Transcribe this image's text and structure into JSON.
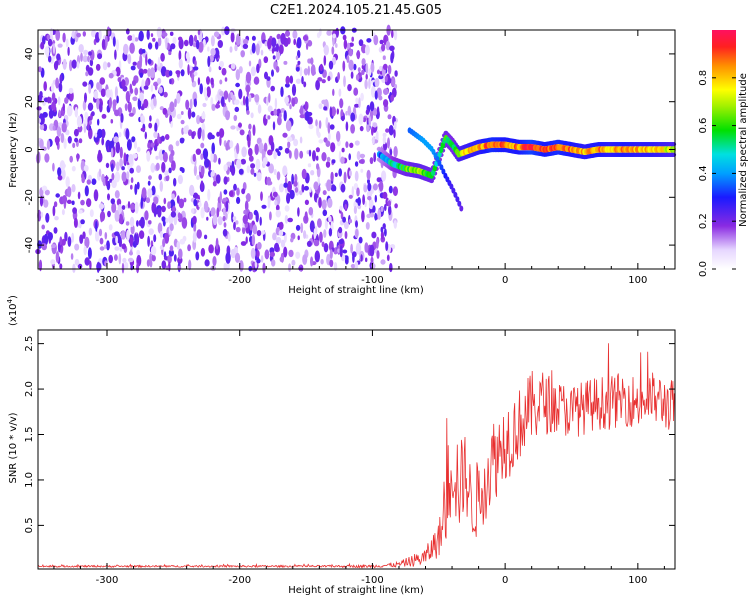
{
  "figure_title": "C2E1.2024.105.21.45.G05",
  "chart_data": [
    {
      "type": "heatmap",
      "title": "C2E1.2024.105.21.45.G05",
      "xlabel": "Height of straight line (km)",
      "ylabel": "Frequency (Hz)",
      "xlim": [
        -352,
        128
      ],
      "ylim": [
        -50,
        50
      ],
      "xticks": [
        -300,
        -200,
        -100,
        0,
        100
      ],
      "yticks": [
        -40,
        -20,
        0,
        20,
        40
      ],
      "grid": false,
      "colorbar": {
        "label": "Normalized spectral amplitude",
        "range": [
          0.0,
          1.0
        ],
        "ticks": [
          0.0,
          0.2,
          0.4,
          0.6,
          0.8
        ],
        "tick_labels": [
          "0.0",
          "0.2",
          "0.4",
          "0.6",
          "0.8"
        ]
      },
      "noise_region": {
        "x": [
          -352,
          -82
        ],
        "y": [
          -50,
          50
        ],
        "amplitude": [
          0.05,
          0.25
        ]
      },
      "signal_track": {
        "x": [
          -95,
          -85,
          -75,
          -65,
          -55,
          -50,
          -45,
          -40,
          -35,
          -30,
          -20,
          -10,
          0,
          10,
          20,
          30,
          40,
          50,
          60,
          70,
          80,
          90,
          100,
          110,
          120,
          128
        ],
        "freq": [
          -2,
          -6,
          -8,
          -9,
          -11,
          -3,
          5,
          2,
          -2,
          -1,
          1,
          2,
          2,
          1,
          1,
          0,
          1,
          0,
          -1,
          0,
          0,
          0,
          0,
          0,
          0,
          0
        ],
        "amplitude": [
          0.35,
          0.5,
          0.6,
          0.65,
          0.6,
          0.5,
          0.6,
          0.55,
          0.7,
          0.75,
          0.8,
          0.9,
          0.85,
          0.85,
          0.95,
          0.85,
          0.9,
          0.85,
          0.8,
          0.85,
          0.8,
          0.85,
          0.8,
          0.8,
          0.75,
          0.7
        ]
      },
      "secondary_track": {
        "x": [
          -72,
          -62,
          -55,
          -50,
          -45,
          -40,
          -35,
          -32
        ],
        "freq": [
          8,
          4,
          0,
          -5,
          -11,
          -16,
          -22,
          -26
        ],
        "amplitude": [
          0.35,
          0.4,
          0.4,
          0.35,
          0.3,
          0.25,
          0.25,
          0.2
        ]
      }
    },
    {
      "type": "line",
      "xlabel": "Height of straight line (km)",
      "ylabel": "SNR (10 * v/v)",
      "yscale_label": "(x10",
      "yscale_exp": "4",
      "yscale_close": ")",
      "xlim": [
        -352,
        128
      ],
      "ylim": [
        0.02,
        2.65
      ],
      "xticks": [
        -300,
        -200,
        -100,
        0,
        100
      ],
      "yticks": [
        0.5,
        1.0,
        1.5,
        2.0,
        2.5
      ],
      "ytick_labels": [
        "0.5",
        "1.0",
        "1.5",
        "2.0",
        "2.5"
      ],
      "grid": false,
      "series": [
        {
          "color": "#e83030",
          "x": [
            -352,
            -300,
            -250,
            -200,
            -150,
            -100,
            -80,
            -60,
            -55,
            -50,
            -45,
            -40,
            -35,
            -30,
            -25,
            -20,
            -15,
            -10,
            -5,
            0,
            5,
            10,
            15,
            20,
            25,
            30,
            40,
            50,
            60,
            70,
            80,
            90,
            100,
            110,
            120,
            128
          ],
          "y": [
            0.05,
            0.05,
            0.05,
            0.05,
            0.05,
            0.05,
            0.07,
            0.15,
            0.25,
            0.35,
            0.6,
            1.4,
            0.9,
            1.1,
            0.7,
            0.8,
            1.0,
            1.2,
            1.3,
            1.45,
            1.5,
            1.6,
            1.7,
            1.8,
            1.85,
            1.85,
            1.8,
            1.75,
            1.8,
            1.85,
            1.85,
            1.9,
            1.85,
            1.9,
            1.85,
            1.8
          ],
          "spread": [
            0.01,
            0.01,
            0.01,
            0.01,
            0.01,
            0.015,
            0.03,
            0.1,
            0.15,
            0.2,
            0.35,
            0.8,
            0.5,
            0.45,
            0.4,
            0.45,
            0.45,
            0.5,
            0.45,
            0.45,
            0.45,
            0.4,
            0.4,
            0.4,
            0.4,
            0.35,
            0.3,
            0.3,
            0.3,
            0.3,
            0.3,
            0.3,
            0.3,
            0.3,
            0.3,
            0.3
          ]
        }
      ]
    }
  ]
}
